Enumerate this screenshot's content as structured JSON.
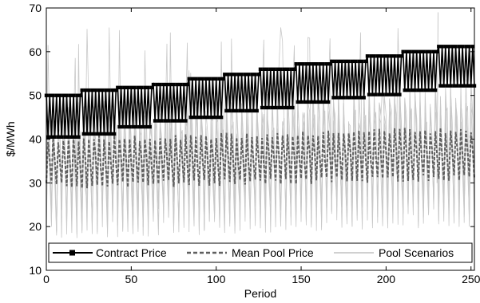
{
  "chart_data": {
    "type": "line",
    "title": "",
    "xlabel": "Period",
    "ylabel": "$/MWh",
    "xlim": [
      0,
      252
    ],
    "ylim": [
      10,
      70
    ],
    "xticks": [
      0,
      50,
      100,
      150,
      200,
      250
    ],
    "yticks": [
      10,
      20,
      30,
      40,
      50,
      60,
      70
    ],
    "grid": false,
    "legend_position": "bottom",
    "legend": [
      "Contract Price",
      "Mean Pool Price",
      "Pool Scenarios"
    ],
    "colors": {
      "contract": "#000000",
      "mean_pool": "#5f5f5f",
      "scenarios": "#c8c8c8"
    },
    "series": [
      {
        "name": "Contract Price",
        "style": "solid line with square markers",
        "blocks": [
          {
            "x_start": 0,
            "x_end": 20,
            "low": 40.5,
            "high": 50.0
          },
          {
            "x_start": 21,
            "x_end": 41,
            "low": 41.2,
            "high": 51.2
          },
          {
            "x_start": 42,
            "x_end": 62,
            "low": 42.8,
            "high": 51.8
          },
          {
            "x_start": 63,
            "x_end": 83,
            "low": 44.2,
            "high": 52.5
          },
          {
            "x_start": 84,
            "x_end": 104,
            "low": 45.0,
            "high": 53.8
          },
          {
            "x_start": 105,
            "x_end": 125,
            "low": 46.5,
            "high": 54.8
          },
          {
            "x_start": 126,
            "x_end": 146,
            "low": 47.2,
            "high": 56.0
          },
          {
            "x_start": 147,
            "x_end": 167,
            "low": 48.5,
            "high": 57.2
          },
          {
            "x_start": 168,
            "x_end": 188,
            "low": 49.5,
            "high": 57.8
          },
          {
            "x_start": 189,
            "x_end": 209,
            "low": 50.2,
            "high": 59.0
          },
          {
            "x_start": 210,
            "x_end": 230,
            "low": 51.2,
            "high": 60.0
          },
          {
            "x_start": 231,
            "x_end": 252,
            "low": 52.2,
            "high": 61.2
          }
        ]
      },
      {
        "name": "Mean Pool Price",
        "style": "dashed line",
        "oscillation": {
          "period_points": 3,
          "low_start": 28.5,
          "low_end": 30.5,
          "high_start": 40.5,
          "high_end": 43.0
        }
      },
      {
        "name": "Pool Scenarios",
        "style": "thin light line",
        "oscillation": {
          "low_range": [
            17,
            25
          ],
          "high_range": [
            45,
            69
          ],
          "peak": 69
        }
      }
    ]
  }
}
